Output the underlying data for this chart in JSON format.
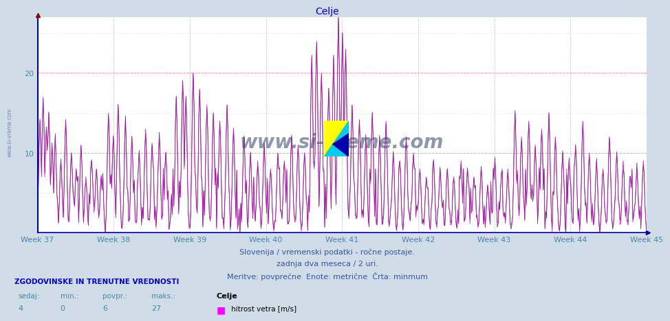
{
  "title": "Celje",
  "title_color": "#0000cc",
  "title_fontsize": 10,
  "bg_color": "#d0dce8",
  "plot_bg_color": "#ffffff",
  "line_color": "#cc00cc",
  "line_color2": "#000000",
  "axis_color": "#0000aa",
  "grid_h_color": "#ffaaaa",
  "grid_v_color": "#ccccdd",
  "week_labels": [
    "Week 37",
    "Week 38",
    "Week 39",
    "Week 40",
    "Week 41",
    "Week 42",
    "Week 43",
    "Week 44",
    "Week 45"
  ],
  "ylim": [
    0,
    27
  ],
  "yticks": [
    10,
    20
  ],
  "tick_color": "#4488aa",
  "subtitle1": "Slovenija / vremenski podatki - ročne postaje.",
  "subtitle2": "zadnja dva meseca / 2 uri.",
  "subtitle3": "Meritve: povprečne  Enote: metrične  Črta: minmum",
  "subtitle_color": "#3355aa",
  "subtitle_fontsize": 8,
  "stats_label": "ZGODOVINSKE IN TRENUTNE VREDNOSTI",
  "stats_color": "#0000cc",
  "stats_keys": [
    "sedaj:",
    "min.:",
    "povpr.:",
    "maks.:"
  ],
  "stats_values": [
    "4",
    "0",
    "6",
    "27"
  ],
  "legend_label": "hitrost vetra [m/s]",
  "legend_station": "Celje",
  "legend_color": "#ff00ff",
  "watermark": "www.si-vreme.com",
  "watermark_color": "#334466",
  "left_watermark": "www.si-vreme.com",
  "n_points": 756
}
